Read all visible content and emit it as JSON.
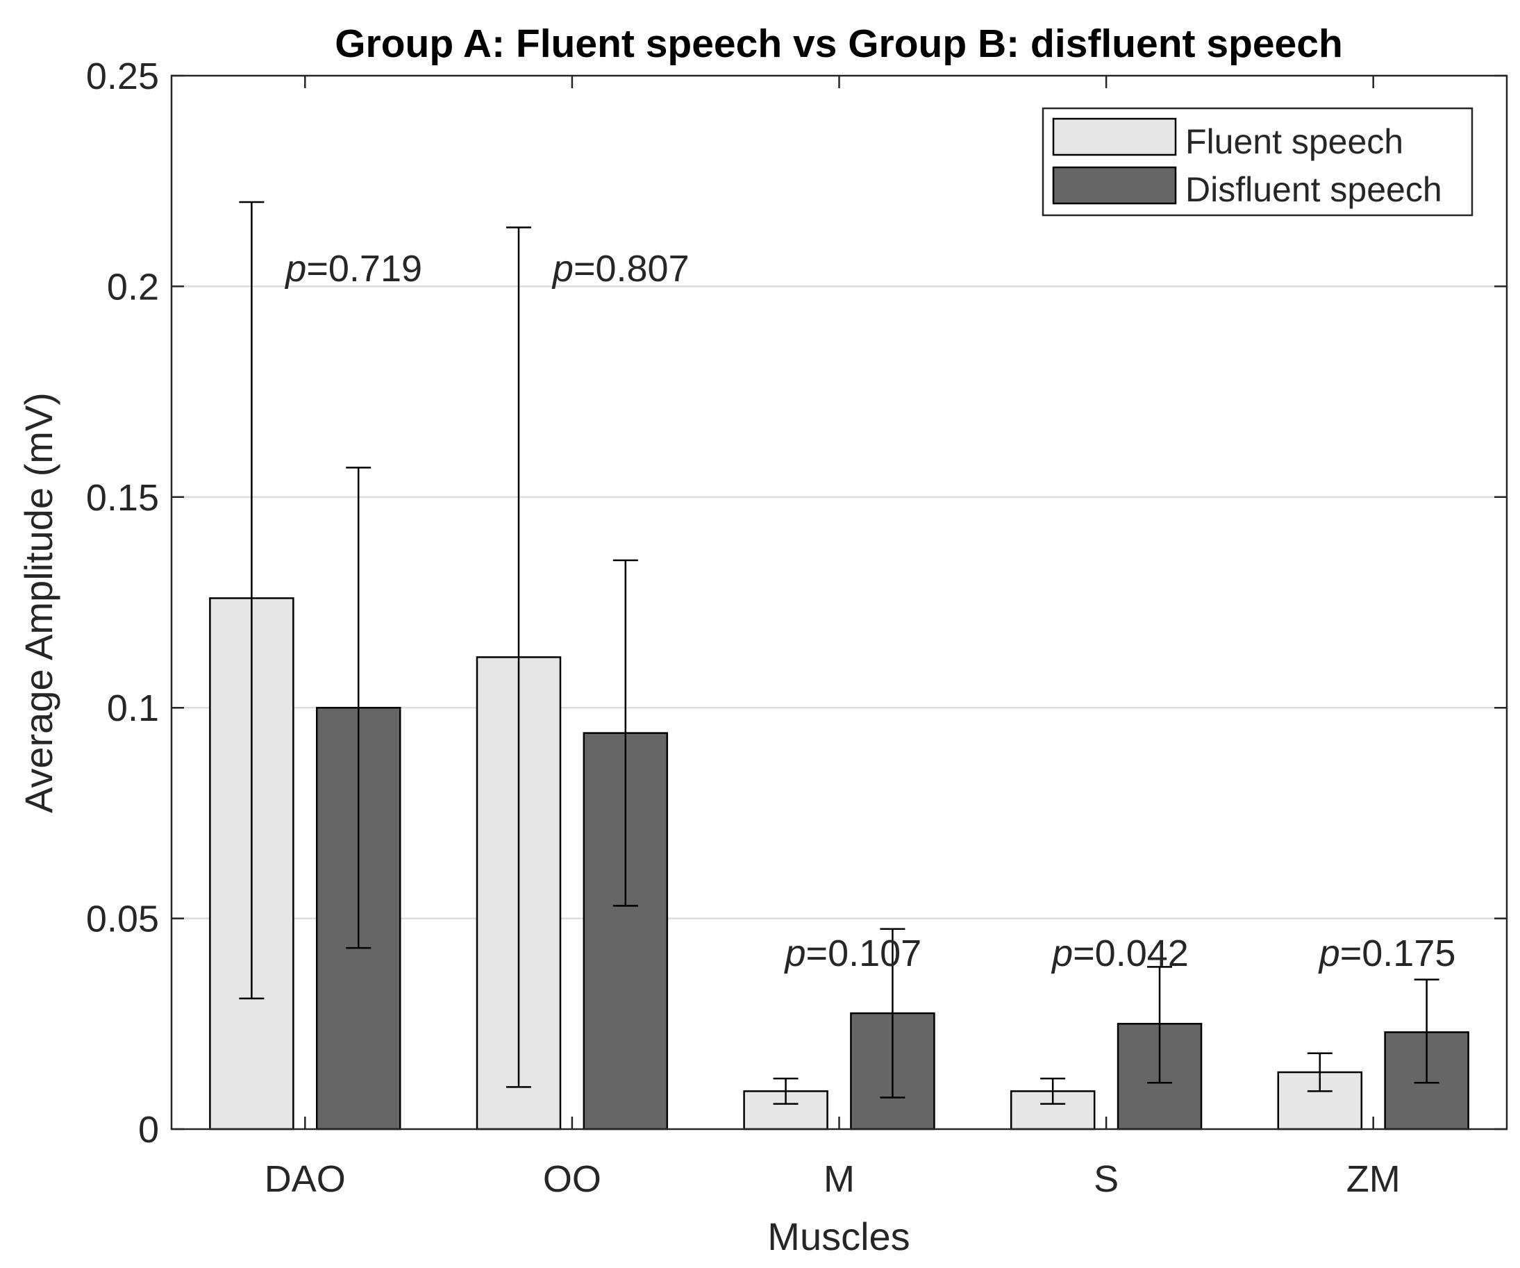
{
  "chart_data": {
    "type": "bar",
    "title": "Group A: Fluent speech vs Group B: disfluent speech",
    "xlabel": "Muscles",
    "ylabel": "Average Amplitude (mV)",
    "ylim": [
      0,
      0.25
    ],
    "yticks": [
      0,
      0.05,
      0.1,
      0.15,
      0.2,
      0.25
    ],
    "ytick_labels": [
      "0",
      "0.05",
      "0.1",
      "0.15",
      "0.2",
      "0.25"
    ],
    "grid": "horizontal",
    "legend_position": "top-right",
    "categories": [
      "DAO",
      "OO",
      "M",
      "S",
      "ZM"
    ],
    "series": [
      {
        "name": "Fluent speech",
        "color": "#e6e6e6",
        "values": [
          0.126,
          0.112,
          0.009,
          0.009,
          0.0135
        ],
        "err_low": [
          0.031,
          0.01,
          0.006,
          0.006,
          0.009
        ],
        "err_high": [
          0.22,
          0.214,
          0.012,
          0.012,
          0.018
        ]
      },
      {
        "name": "Disfluent speech",
        "color": "#666666",
        "values": [
          0.1,
          0.094,
          0.0275,
          0.025,
          0.023
        ],
        "err_low": [
          0.043,
          0.053,
          0.0075,
          0.011,
          0.011
        ],
        "err_high": [
          0.157,
          0.135,
          0.0475,
          0.0385,
          0.0355
        ]
      }
    ],
    "annotations": [
      {
        "category": "DAO",
        "p_symbol": "p",
        "text": "=0.719",
        "y": 0.204
      },
      {
        "category": "OO",
        "p_symbol": "p",
        "text": "=0.807",
        "y": 0.204
      },
      {
        "category": "M",
        "p_symbol": "p",
        "text": "=0.107",
        "y": 0.0415
      },
      {
        "category": "S",
        "p_symbol": "p",
        "text": "=0.042",
        "y": 0.0415
      },
      {
        "category": "ZM",
        "p_symbol": "p",
        "text": "=0.175",
        "y": 0.0415
      }
    ]
  }
}
